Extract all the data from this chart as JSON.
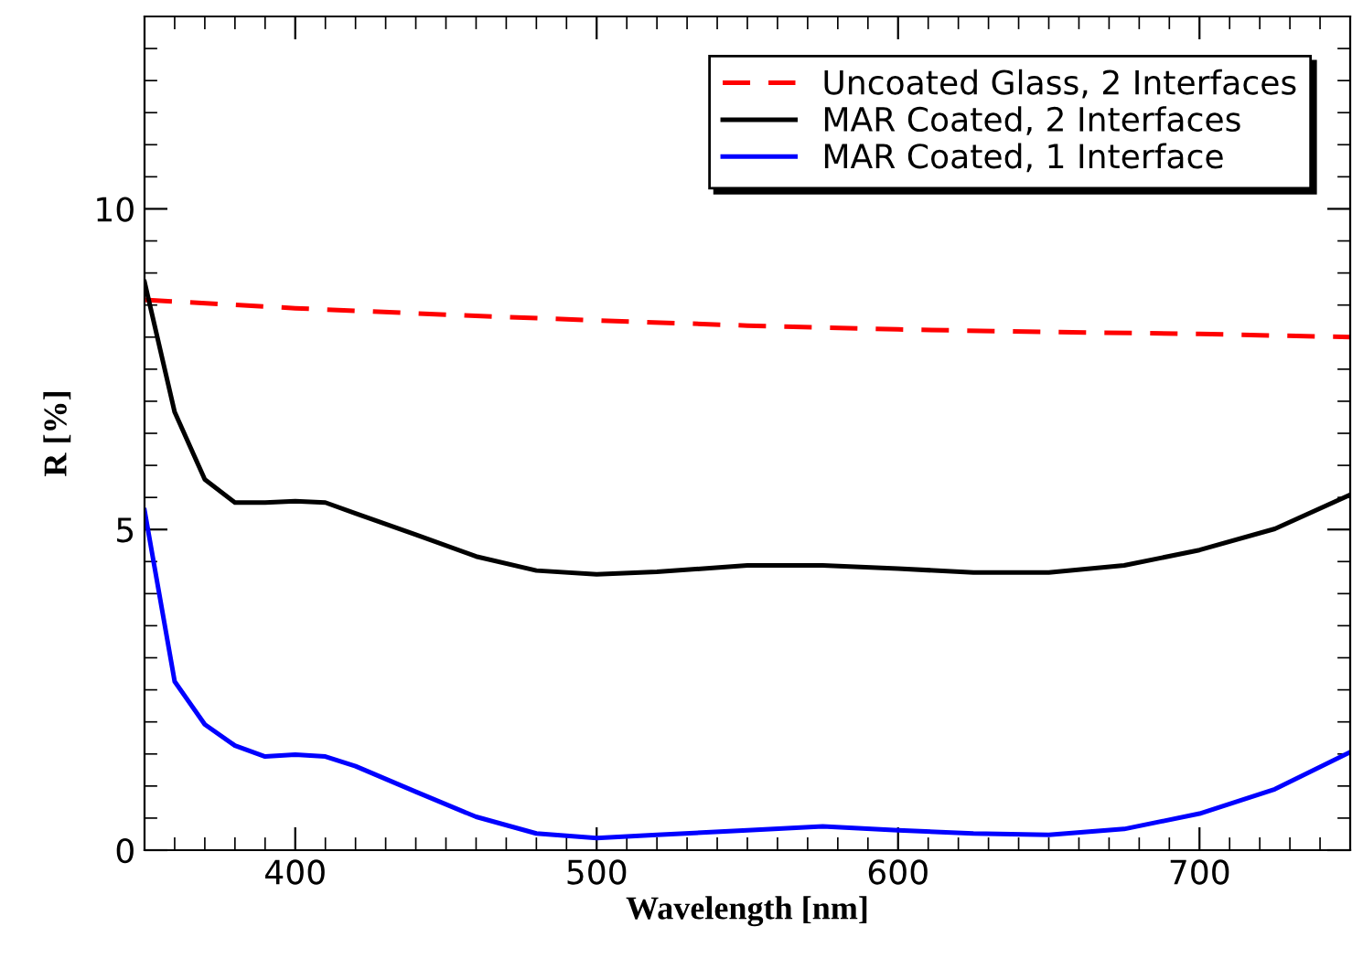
{
  "chart_data": {
    "type": "line",
    "xlabel": "Wavelength [nm]",
    "ylabel": "R [%]",
    "xlim": [
      350,
      750
    ],
    "ylim": [
      0,
      13
    ],
    "xticks": [
      400,
      500,
      600,
      700
    ],
    "yticks": [
      0,
      5,
      10
    ],
    "grid": false,
    "legend": "top right",
    "series": [
      {
        "name": "Uncoated Glass, 2 Interfaces",
        "color": "#ff0000",
        "line_style": "dashed",
        "x": [
          350,
          400,
          450,
          500,
          550,
          600,
          650,
          700,
          750
        ],
        "values": [
          8.58,
          8.45,
          8.35,
          8.26,
          8.18,
          8.12,
          8.08,
          8.05,
          8.0
        ]
      },
      {
        "name": "MAR Coated, 2 Interfaces",
        "color": "#000000",
        "line_style": "solid",
        "x": [
          350,
          360,
          370,
          380,
          390,
          400,
          410,
          420,
          440,
          460,
          480,
          500,
          520,
          550,
          575,
          600,
          625,
          650,
          675,
          700,
          725,
          750
        ],
        "values": [
          8.86,
          6.83,
          5.78,
          5.42,
          5.42,
          5.44,
          5.42,
          5.25,
          4.92,
          4.58,
          4.36,
          4.3,
          4.34,
          4.44,
          4.44,
          4.39,
          4.33,
          4.33,
          4.44,
          4.68,
          5.01,
          5.54
        ]
      },
      {
        "name": "MAR Coated, 1 Interface",
        "color": "#0000ff",
        "line_style": "solid",
        "x": [
          350,
          360,
          370,
          380,
          390,
          400,
          410,
          420,
          440,
          460,
          480,
          500,
          520,
          550,
          575,
          600,
          625,
          650,
          675,
          700,
          725,
          750
        ],
        "values": [
          5.3,
          2.63,
          1.96,
          1.63,
          1.46,
          1.49,
          1.46,
          1.31,
          0.91,
          0.52,
          0.26,
          0.19,
          0.24,
          0.31,
          0.37,
          0.31,
          0.26,
          0.24,
          0.33,
          0.57,
          0.95,
          1.53
        ]
      }
    ]
  }
}
